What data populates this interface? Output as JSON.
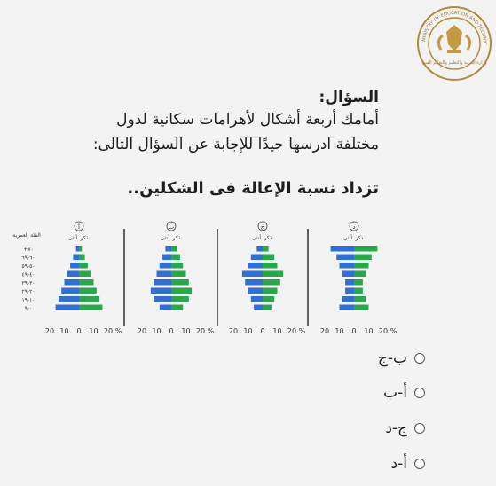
{
  "header": {
    "logo": {
      "icon": "ministry-of-education-seal-icon",
      "text_arabic": "وزارة التربية والتعليم والتعليم الفنى",
      "text_english": "MINISTRY OF EDUCATION AND TECHNICAL EDUCATION"
    }
  },
  "question": {
    "label": "السؤال:",
    "line1": "أمامك أربعة أشكال لأهرامات سكانية لدول",
    "line2": "مختلفة ادرسها جيدًا للإجابة عن السؤال التالى:",
    "statement": "تزداد نسبة الإعالة فى الشكلين.."
  },
  "colors": {
    "female": "#2f6fd6",
    "male": "#27a84a",
    "divider": "#333333"
  },
  "chart_data": {
    "type": "bar",
    "orientation": "horizontal-population-pyramid",
    "age_axis_title": "الفئة العمرية",
    "age_groups": [
      "+٧٠",
      "٦٠-٦٩",
      "٥٠-٥٩",
      "٤٠-٤٩",
      "٣٠-٣٩",
      "٢٠-٢٩",
      "١٠-١٩",
      "٠-٩"
    ],
    "series_names": {
      "female": "أنثى",
      "male": "ذكر"
    },
    "x_ticks": [
      "20",
      "10",
      "0",
      "10",
      "20",
      "%"
    ],
    "xlim": [
      -20,
      20
    ],
    "pyramids": [
      {
        "label": "أ",
        "female": [
          2,
          4,
          6,
          8,
          10,
          12,
          14,
          16
        ],
        "male": [
          2,
          4,
          6,
          8,
          10,
          12,
          14,
          16
        ]
      },
      {
        "label": "ب",
        "female": [
          4,
          6,
          8,
          10,
          12,
          14,
          12,
          8
        ],
        "male": [
          4,
          6,
          8,
          10,
          12,
          14,
          12,
          8
        ]
      },
      {
        "label": "ج",
        "female": [
          4,
          8,
          10,
          14,
          12,
          10,
          8,
          6
        ],
        "male": [
          4,
          8,
          10,
          14,
          12,
          10,
          8,
          6
        ]
      },
      {
        "label": "د",
        "female": [
          16,
          12,
          10,
          8,
          6,
          6,
          8,
          10
        ],
        "male": [
          16,
          12,
          10,
          8,
          6,
          6,
          8,
          10
        ]
      }
    ]
  },
  "options": [
    {
      "text": "ب-ج"
    },
    {
      "text": "أ-ب"
    },
    {
      "text": "ج-د"
    },
    {
      "text": "أ-د"
    }
  ]
}
